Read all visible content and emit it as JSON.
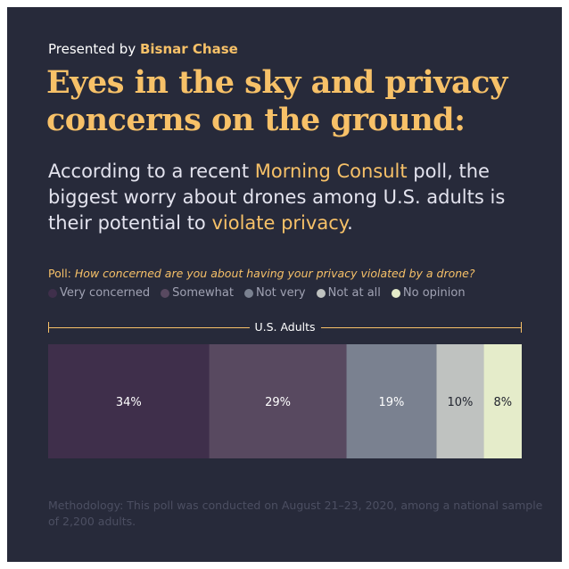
{
  "header": {
    "presented_prefix": "Presented by",
    "brand": "Bisnar Chase",
    "title": "Eyes in the sky and privacy concerns on the ground:",
    "subtitle": {
      "part1": "According to a recent ",
      "highlight1": "Morning Consult",
      "part2": " poll, the biggest worry about drones among U.S. adults is their potential to ",
      "highlight2": "violate privacy",
      "part3": "."
    }
  },
  "poll": {
    "prefix": "Poll:",
    "question": "How concerned are you about having your privacy violated by a drone?"
  },
  "chart_data": {
    "type": "bar",
    "stacked": true,
    "orientation": "horizontal",
    "group_label": "U.S. Adults",
    "categories": [
      "U.S. Adults"
    ],
    "series": [
      {
        "name": "Very concerned",
        "values": [
          34
        ],
        "label": "34%",
        "color": "#3f2f4b",
        "text_color": "#ffffff"
      },
      {
        "name": "Somewhat",
        "values": [
          29
        ],
        "label": "29%",
        "color": "#584960",
        "text_color": "#ffffff"
      },
      {
        "name": "Not very",
        "values": [
          19
        ],
        "label": "19%",
        "color": "#7a8190",
        "text_color": "#ffffff"
      },
      {
        "name": "Not at all",
        "values": [
          10
        ],
        "label": "10%",
        "color": "#bfc2c0",
        "text_color": "#22252f"
      },
      {
        "name": "No opinion",
        "values": [
          8
        ],
        "label": "8%",
        "color": "#e5ecca",
        "text_color": "#22252f"
      }
    ],
    "legend": "top-left",
    "grid": false
  },
  "methodology": "Methodology: This poll was conducted on August 21–23, 2020, among a national sample of 2,200 adults."
}
